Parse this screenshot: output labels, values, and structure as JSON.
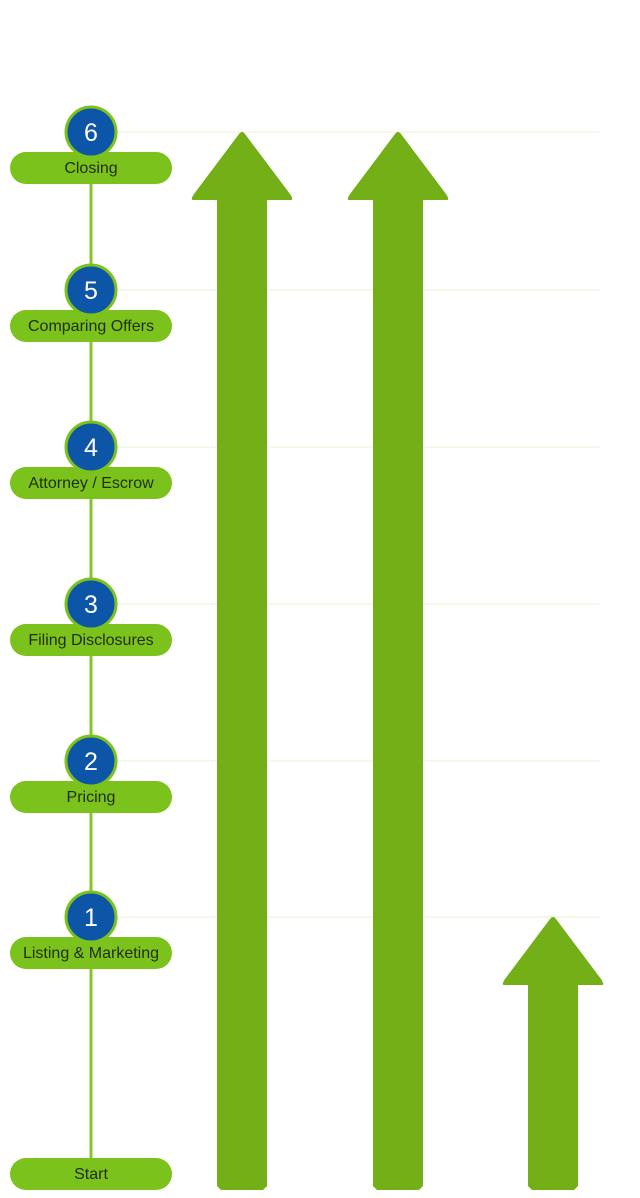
{
  "colors": {
    "pill": "#7cc21c",
    "arrow": "#73b018",
    "track": "#86c529",
    "badge_fill": "#0d55a6",
    "badge_ring": "#7cc21c",
    "guide_line": "#e9f0d6",
    "label_text": "#1f2d0f",
    "number_text": "#ffffff"
  },
  "steps": [
    {
      "number": "6",
      "label": "Closing"
    },
    {
      "number": "5",
      "label": "Comparing Offers"
    },
    {
      "number": "4",
      "label": "Attorney / Escrow"
    },
    {
      "number": "3",
      "label": "Filing Disclosures"
    },
    {
      "number": "2",
      "label": "Pricing"
    },
    {
      "number": "1",
      "label": "Listing & Marketing"
    }
  ],
  "start": {
    "label": "Start"
  },
  "arrows": [
    {
      "reaches_step": "6"
    },
    {
      "reaches_step": "6"
    },
    {
      "reaches_step": "1"
    }
  ]
}
